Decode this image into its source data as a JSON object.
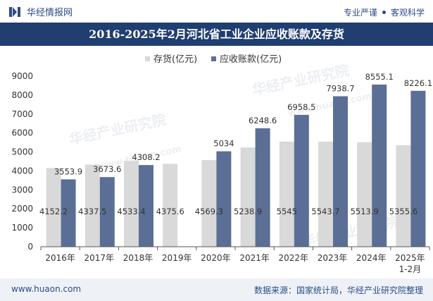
{
  "brand": {
    "name": "华经情报网",
    "slogan_left": "专业严谨",
    "slogan_right": "客观科学"
  },
  "title": "2016-2025年2月河北省工业企业应收账款及存货",
  "footer": {
    "website": "www.huaon.com",
    "source": "数据来源：国家统计局，华经产业研究院整理"
  },
  "watermarks": [
    "华经产业研究院",
    "www.huaon.com"
  ],
  "colors": {
    "inventory": "#d9d9d9",
    "receivables": "#5b6e96",
    "header_bg": "#203e70",
    "footer_bg": "#eef2f7"
  },
  "chart_data": {
    "type": "bar",
    "categories": [
      "2016年",
      "2017年",
      "2018年",
      "2019年",
      "2020年",
      "2021年",
      "2022年",
      "2023年",
      "2024年",
      "2025年\n1-2月"
    ],
    "series": [
      {
        "name": "存货(亿元)",
        "values": [
          4152.2,
          4337.5,
          4533.4,
          4375.6,
          4569.3,
          5238.9,
          5545,
          5543.7,
          5513.9,
          5355.6
        ]
      },
      {
        "name": "应收账款(亿元)",
        "values": [
          3553.9,
          3673.6,
          4308.2,
          null,
          5034,
          6248.6,
          6958.5,
          7938.7,
          8555.1,
          8226.1
        ]
      }
    ],
    "ylim": [
      0,
      9000
    ],
    "yticks": [
      0,
      1000,
      2000,
      3000,
      4000,
      5000,
      6000,
      7000,
      8000,
      9000
    ],
    "legend_position": "top-center",
    "grid": false
  }
}
